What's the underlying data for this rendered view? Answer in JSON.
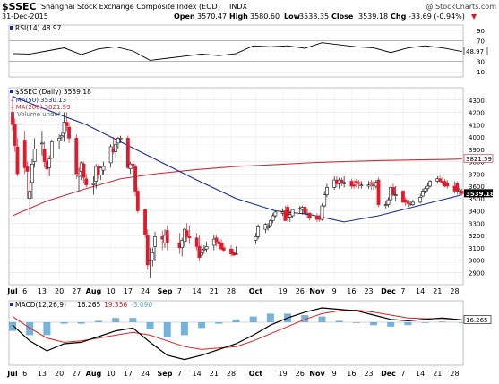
{
  "header": {
    "symbol": "$SSEC",
    "name": "Shanghai Stock Exchange Composite Index (EOD)",
    "exchange": "INDX",
    "watermark": "@ StockCharts.com",
    "date": "31-Dec-2015",
    "open_label": "Open",
    "open": "3570.47",
    "high_label": "High",
    "high": "3580.60",
    "low_label": "Low",
    "low": "3538.35",
    "close_label": "Close",
    "close": "3539.18",
    "chg_label": "Chg",
    "chg": "-33.69 (-0.94%)",
    "chg_arrow": "▼"
  },
  "colors": {
    "up": "#111111",
    "down": "#e01a2b",
    "ma50": "#1b2a9a",
    "ma200": "#cc2b3a",
    "macd_line": "#000000",
    "signal_line": "#e02020",
    "histogram": "#5aa7d6",
    "rsi_line": "#000000",
    "grid": "#d8d8d8"
  },
  "rsi": {
    "legend": "RSI(14) 48.97",
    "value_tag": "48.97",
    "ticks": [
      "90",
      "70",
      "50",
      "30",
      "10"
    ]
  },
  "price": {
    "legend": "$SSEC (Daily) 3539.18",
    "ma50_legend": "MA(50) 3530.13",
    "ma200_legend": "MA(200) 3821.59",
    "volume_legend": "Volume undef",
    "ma200_tag": "3821.59",
    "close_tag": "3539.18",
    "ma50_tag": "3530.13",
    "ticks": [
      "4300",
      "4200",
      "4100",
      "4000",
      "3900",
      "3800",
      "3700",
      "3600",
      "3500",
      "3400",
      "3300",
      "3200",
      "3100",
      "3000",
      "2900"
    ]
  },
  "macd": {
    "legend_prefix": "MACD(12,26,9)",
    "legend_macd": "16.265",
    "legend_signal": "19.356",
    "legend_hist": "-3.090",
    "value_tag": "16.265"
  },
  "xaxis": {
    "labels": [
      "Jul",
      "6",
      "13",
      "20",
      "27",
      "Aug",
      "10",
      "17",
      "24",
      "Sep",
      "7",
      "14",
      "21",
      "28",
      "Oct",
      "19",
      "26",
      "Nov",
      "9",
      "16",
      "23",
      "Dec",
      "7",
      "14",
      "21",
      "28"
    ],
    "bold": [
      "Jul",
      "Aug",
      "Sep",
      "Oct",
      "Nov",
      "Dec"
    ]
  },
  "chart_data": [
    {
      "type": "line",
      "title": "RSI(14) 48.97",
      "ylim": [
        0,
        100
      ],
      "reference_lines": [
        70,
        30
      ],
      "x": [
        "Jul 1",
        "Jul 8",
        "Jul 15",
        "Jul 22",
        "Jul 29",
        "Aug 5",
        "Aug 12",
        "Aug 19",
        "Aug 26",
        "Sep 2",
        "Sep 9",
        "Sep 16",
        "Sep 23",
        "Sep 30",
        "Oct 7",
        "Oct 14",
        "Oct 21",
        "Oct 28",
        "Nov 4",
        "Nov 11",
        "Nov 18",
        "Nov 25",
        "Dec 2",
        "Dec 9",
        "Dec 16",
        "Dec 23",
        "Dec 31"
      ],
      "series": [
        {
          "name": "RSI(14)",
          "values": [
            45,
            44,
            50,
            56,
            43,
            54,
            58,
            50,
            32,
            36,
            40,
            44,
            41,
            45,
            60,
            58,
            60,
            55,
            66,
            62,
            58,
            56,
            47,
            56,
            60,
            56,
            49
          ]
        }
      ]
    },
    {
      "type": "candlestick",
      "title": "$SSEC (Daily) 3539.18",
      "ylim": [
        2800,
        4400
      ],
      "x": [
        "Jul 1",
        "Jul 2",
        "Jul 3",
        "Jul 6",
        "Jul 7",
        "Jul 8",
        "Jul 9",
        "Jul 10",
        "Jul 13",
        "Jul 14",
        "Jul 15",
        "Jul 16",
        "Jul 17",
        "Jul 20",
        "Jul 21",
        "Jul 22",
        "Jul 23",
        "Jul 24",
        "Jul 27",
        "Jul 28",
        "Jul 29",
        "Jul 30",
        "Jul 31",
        "Aug 3",
        "Aug 4",
        "Aug 5",
        "Aug 6",
        "Aug 7",
        "Aug 10",
        "Aug 11",
        "Aug 12",
        "Aug 13",
        "Aug 14",
        "Aug 17",
        "Aug 18",
        "Aug 19",
        "Aug 20",
        "Aug 21",
        "Aug 24",
        "Aug 25",
        "Aug 26",
        "Aug 27",
        "Aug 28",
        "Aug 31",
        "Sep 1",
        "Sep 2",
        "Sep 7",
        "Sep 8",
        "Sep 9",
        "Sep 10",
        "Sep 11",
        "Sep 14",
        "Sep 15",
        "Sep 16",
        "Sep 17",
        "Sep 18",
        "Sep 21",
        "Sep 22",
        "Sep 23",
        "Sep 24",
        "Sep 25",
        "Sep 28",
        "Sep 29",
        "Sep 30",
        "Oct 8",
        "Oct 9",
        "Oct 12",
        "Oct 13",
        "Oct 14",
        "Oct 15",
        "Oct 16",
        "Oct 19",
        "Oct 20",
        "Oct 21",
        "Oct 22",
        "Oct 23",
        "Oct 26",
        "Oct 27",
        "Oct 28",
        "Oct 29",
        "Oct 30",
        "Nov 2",
        "Nov 3",
        "Nov 4",
        "Nov 5",
        "Nov 6",
        "Nov 9",
        "Nov 10",
        "Nov 11",
        "Nov 12",
        "Nov 13",
        "Nov 16",
        "Nov 17",
        "Nov 18",
        "Nov 19",
        "Nov 20",
        "Nov 23",
        "Nov 24",
        "Nov 25",
        "Nov 26",
        "Nov 27",
        "Nov 30",
        "Dec 1",
        "Dec 2",
        "Dec 3",
        "Dec 4",
        "Dec 7",
        "Dec 8",
        "Dec 9",
        "Dec 10",
        "Dec 11",
        "Dec 14",
        "Dec 15",
        "Dec 16",
        "Dec 17",
        "Dec 18",
        "Dec 21",
        "Dec 22",
        "Dec 23",
        "Dec 24",
        "Dec 25",
        "Dec 28",
        "Dec 29",
        "Dec 30",
        "Dec 31"
      ],
      "open": [
        4200,
        4100,
        3920,
        3975,
        3760,
        3500,
        3630,
        3800,
        3950,
        3900,
        3800,
        3750,
        3830,
        3970,
        4000,
        4030,
        4120,
        4080,
        3990,
        3680,
        3720,
        3780,
        3660,
        3610,
        3640,
        3760,
        3690,
        3730,
        3790,
        3900,
        3880,
        3950,
        3990,
        3990,
        3740,
        3780,
        3760,
        3560,
        3410,
        3200,
        3000,
        3000,
        3110,
        3190,
        3140,
        3240,
        3140,
        3100,
        3150,
        3240,
        3190,
        3180,
        3110,
        3040,
        3090,
        3090,
        3120,
        3180,
        3150,
        3140,
        3100,
        3090,
        3060,
        3050,
        3160,
        3190,
        3250,
        3260,
        3280,
        3320,
        3360,
        3380,
        3400,
        3430,
        3350,
        3360,
        3420,
        3410,
        3430,
        3380,
        3380,
        3360,
        3340,
        3330,
        3440,
        3530,
        3590,
        3650,
        3620,
        3650,
        3620,
        3640,
        3610,
        3640,
        3630,
        3610,
        3600,
        3630,
        3610,
        3600,
        3650,
        3450,
        3450,
        3490,
        3590,
        3530,
        3560,
        3490,
        3470,
        3460,
        3450,
        3470,
        3520,
        3560,
        3580,
        3600,
        3640,
        3660,
        3640,
        3640,
        3620,
        3600,
        3620,
        3560,
        3560
      ],
      "high": [
        4330,
        4150,
        3990,
        4050,
        3800,
        3650,
        3820,
        3990,
        4050,
        3960,
        3850,
        3850,
        3980,
        4020,
        4040,
        4200,
        4200,
        4120,
        4020,
        3750,
        3800,
        3800,
        3700,
        3680,
        3780,
        3780,
        3760,
        3800,
        3940,
        4000,
        3970,
        4000,
        4010,
        4010,
        3800,
        3800,
        3780,
        3590,
        3420,
        3250,
        3100,
        3100,
        3230,
        3240,
        3250,
        3280,
        3220,
        3180,
        3260,
        3300,
        3280,
        3220,
        3200,
        3130,
        3120,
        3150,
        3200,
        3200,
        3170,
        3170,
        3140,
        3120,
        3090,
        3110,
        3220,
        3290,
        3300,
        3300,
        3330,
        3380,
        3400,
        3420,
        3440,
        3450,
        3400,
        3410,
        3440,
        3440,
        3450,
        3420,
        3390,
        3380,
        3370,
        3460,
        3560,
        3620,
        3680,
        3680,
        3670,
        3670,
        3680,
        3660,
        3650,
        3660,
        3650,
        3640,
        3640,
        3650,
        3640,
        3650,
        3670,
        3480,
        3510,
        3600,
        3620,
        3600,
        3570,
        3510,
        3490,
        3480,
        3490,
        3540,
        3580,
        3600,
        3630,
        3650,
        3680,
        3690,
        3670,
        3660,
        3650,
        3640,
        3640,
        3590,
        3580
      ],
      "low": [
        4050,
        3880,
        3680,
        3700,
        3500,
        3370,
        3500,
        3750,
        3850,
        3750,
        3660,
        3680,
        3820,
        3900,
        3970,
        3960,
        4050,
        3950,
        3660,
        3560,
        3650,
        3620,
        3590,
        3530,
        3580,
        3660,
        3650,
        3690,
        3750,
        3860,
        3830,
        3900,
        3950,
        3740,
        3700,
        3700,
        3520,
        3380,
        3180,
        2920,
        2850,
        2950,
        2990,
        3080,
        3100,
        3080,
        3050,
        3030,
        3110,
        3150,
        3130,
        3080,
        2990,
        3020,
        3050,
        3060,
        3080,
        3110,
        3090,
        3080,
        3070,
        3030,
        3030,
        3040,
        3130,
        3170,
        3220,
        3240,
        3260,
        3300,
        3340,
        3360,
        3320,
        3310,
        3310,
        3340,
        3380,
        3370,
        3380,
        3340,
        3320,
        3310,
        3310,
        3320,
        3430,
        3510,
        3570,
        3590,
        3580,
        3600,
        3590,
        3580,
        3580,
        3590,
        3580,
        3580,
        3580,
        3570,
        3570,
        3580,
        3430,
        3420,
        3430,
        3480,
        3520,
        3480,
        3460,
        3440,
        3430,
        3440,
        3440,
        3460,
        3510,
        3540,
        3560,
        3590,
        3620,
        3620,
        3610,
        3590,
        3580,
        3540,
        3530,
        3530,
        3540
      ],
      "close": [
        4100,
        3930,
        3700,
        3750,
        3720,
        3560,
        3780,
        3900,
        3950,
        3800,
        3740,
        3820,
        3960,
        3990,
        4010,
        4120,
        4090,
        3990,
        3700,
        3690,
        3790,
        3670,
        3610,
        3620,
        3760,
        3690,
        3750,
        3760,
        3920,
        3880,
        3940,
        3990,
        3990,
        3750,
        3780,
        3770,
        3560,
        3400,
        3210,
        2960,
        3000,
        3060,
        3190,
        3170,
        3200,
        3140,
        3100,
        3160,
        3250,
        3190,
        3180,
        3110,
        3020,
        3060,
        3090,
        3110,
        3170,
        3150,
        3130,
        3090,
        3080,
        3050,
        3040,
        3050,
        3190,
        3270,
        3290,
        3270,
        3320,
        3360,
        3390,
        3390,
        3320,
        3340,
        3370,
        3410,
        3420,
        3430,
        3380,
        3380,
        3340,
        3330,
        3330,
        3440,
        3530,
        3590,
        3650,
        3620,
        3650,
        3630,
        3630,
        3600,
        3600,
        3630,
        3620,
        3610,
        3610,
        3620,
        3610,
        3630,
        3450,
        3450,
        3490,
        3590,
        3530,
        3530,
        3470,
        3470,
        3460,
        3460,
        3470,
        3510,
        3560,
        3580,
        3600,
        3640,
        3660,
        3640,
        3630,
        3600,
        3600,
        3560,
        3560,
        3570,
        3539
      ]
    },
    {
      "type": "line",
      "title": "Moving averages",
      "x": [
        "Jul 1",
        "Jul 15",
        "Jul 31",
        "Aug 14",
        "Aug 28",
        "Sep 14",
        "Sep 30",
        "Oct 16",
        "Oct 30",
        "Nov 13",
        "Nov 27",
        "Dec 11",
        "Dec 25",
        "Dec 31"
      ],
      "series": [
        {
          "name": "MA(50)",
          "values": [
            4330,
            4220,
            4100,
            3960,
            3820,
            3650,
            3500,
            3400,
            3370,
            3310,
            3360,
            3430,
            3500,
            3530
          ]
        },
        {
          "name": "MA(200)",
          "values": [
            3360,
            3480,
            3580,
            3660,
            3700,
            3735,
            3760,
            3775,
            3790,
            3800,
            3808,
            3813,
            3818,
            3821
          ]
        }
      ]
    },
    {
      "type": "line",
      "title": "MACD(12,26,9) 16.265, 19.356, -3.090",
      "x": [
        "Jul 1",
        "Jul 8",
        "Jul 15",
        "Jul 22",
        "Jul 29",
        "Aug 5",
        "Aug 12",
        "Aug 19",
        "Aug 26",
        "Sep 2",
        "Sep 9",
        "Sep 16",
        "Sep 23",
        "Sep 30",
        "Oct 7",
        "Oct 14",
        "Oct 21",
        "Oct 28",
        "Nov 4",
        "Nov 11",
        "Nov 18",
        "Nov 25",
        "Dec 2",
        "Dec 9",
        "Dec 16",
        "Dec 23",
        "Dec 31"
      ],
      "series": [
        {
          "name": "MACD",
          "values": [
            -20,
            -130,
            -200,
            -150,
            -140,
            -100,
            -60,
            -40,
            -140,
            -230,
            -260,
            -230,
            -190,
            -150,
            -90,
            -20,
            30,
            70,
            100,
            90,
            80,
            50,
            20,
            10,
            20,
            30,
            16
          ]
        },
        {
          "name": "Signal",
          "values": [
            40,
            -40,
            -110,
            -140,
            -130,
            -110,
            -90,
            -70,
            -90,
            -130,
            -170,
            -190,
            -180,
            -170,
            -130,
            -80,
            -30,
            20,
            60,
            80,
            85,
            70,
            50,
            30,
            25,
            25,
            19
          ]
        },
        {
          "name": "Histogram",
          "values": [
            -60,
            -90,
            -90,
            -10,
            -10,
            10,
            30,
            30,
            -50,
            -100,
            -90,
            -40,
            -10,
            20,
            40,
            60,
            60,
            50,
            40,
            10,
            -5,
            -20,
            -30,
            -20,
            -5,
            5,
            -3
          ]
        }
      ]
    }
  ]
}
